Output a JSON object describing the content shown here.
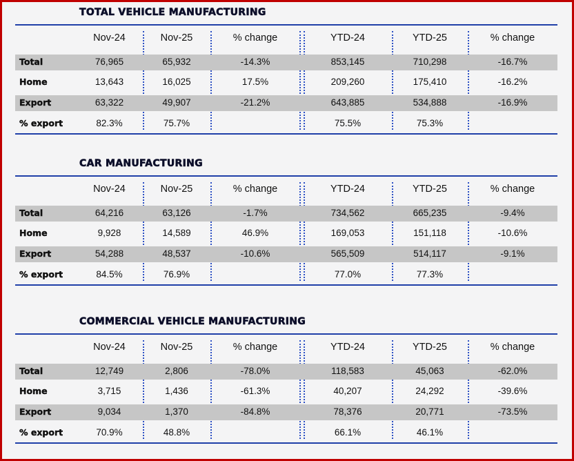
{
  "colors": {
    "frame": "#c00000",
    "rule": "#1f3fa8",
    "band": "#c6c6c6",
    "title": "#0d0f2a"
  },
  "sections": [
    {
      "title": "TOTAL VEHICLE MANUFACTURING",
      "headers": [
        "Nov-24",
        "Nov-25",
        "% change",
        "YTD-24",
        "YTD-25",
        "% change"
      ],
      "rows": [
        {
          "label": "Total",
          "values": [
            "76,965",
            "65,932",
            "-14.3%",
            "853,145",
            "710,298",
            "-16.7%"
          ]
        },
        {
          "label": "Home",
          "values": [
            "13,643",
            "16,025",
            "17.5%",
            "209,260",
            "175,410",
            "-16.2%"
          ]
        },
        {
          "label": "Export",
          "values": [
            "63,322",
            "49,907",
            "-21.2%",
            "643,885",
            "534,888",
            "-16.9%"
          ]
        },
        {
          "label": "% export",
          "values": [
            "82.3%",
            "75.7%",
            "",
            "75.5%",
            "75.3%",
            ""
          ]
        }
      ]
    },
    {
      "title": "CAR MANUFACTURING",
      "headers": [
        "Nov-24",
        "Nov-25",
        "% change",
        "YTD-24",
        "YTD-25",
        "% change"
      ],
      "rows": [
        {
          "label": "Total",
          "values": [
            "64,216",
            "63,126",
            "-1.7%",
            "734,562",
            "665,235",
            "-9.4%"
          ]
        },
        {
          "label": "Home",
          "values": [
            "9,928",
            "14,589",
            "46.9%",
            "169,053",
            "151,118",
            "-10.6%"
          ]
        },
        {
          "label": "Export",
          "values": [
            "54,288",
            "48,537",
            "-10.6%",
            "565,509",
            "514,117",
            "-9.1%"
          ]
        },
        {
          "label": "% export",
          "values": [
            "84.5%",
            "76.9%",
            "",
            "77.0%",
            "77.3%",
            ""
          ]
        }
      ]
    },
    {
      "title": "COMMERCIAL VEHICLE MANUFACTURING",
      "headers": [
        "Nov-24",
        "Nov-25",
        "% change",
        "YTD-24",
        "YTD-25",
        "% change"
      ],
      "rows": [
        {
          "label": "Total",
          "values": [
            "12,749",
            "2,806",
            "-78.0%",
            "118,583",
            "45,063",
            "-62.0%"
          ]
        },
        {
          "label": "Home",
          "values": [
            "3,715",
            "1,436",
            "-61.3%",
            "40,207",
            "24,292",
            "-39.6%"
          ]
        },
        {
          "label": "Export",
          "values": [
            "9,034",
            "1,370",
            "-84.8%",
            "78,376",
            "20,771",
            "-73.5%"
          ]
        },
        {
          "label": "% export",
          "values": [
            "70.9%",
            "48.8%",
            "",
            "66.1%",
            "46.1%",
            ""
          ]
        }
      ]
    }
  ]
}
